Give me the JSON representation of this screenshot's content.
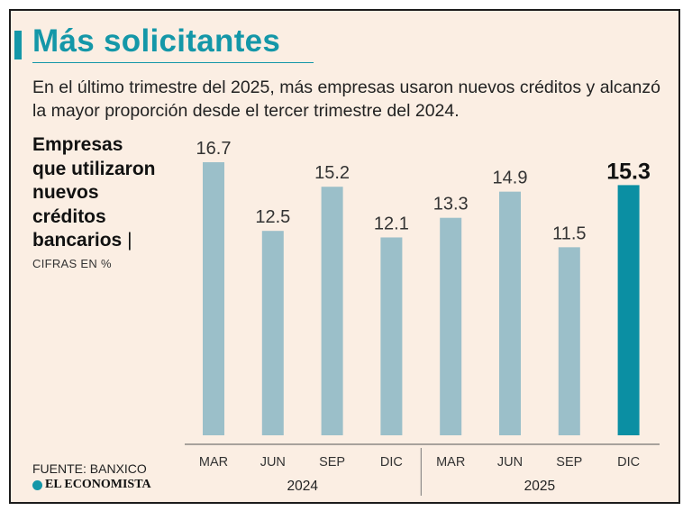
{
  "title": "Más solicitantes",
  "subtitle": "En el último trimestre del 2025, más empresas usaron nuevos créditos y alcanzó la mayor proporción desde el tercer trimestre del 2024.",
  "ylabel_lines": [
    "Empresas",
    "que utilizaron",
    "nuevos",
    "créditos",
    "bancarios"
  ],
  "ylabel_separator": "|",
  "units": "CIFRAS EN %",
  "source": "FUENTE: BANXICO",
  "brand": "EL ECONOMISTA",
  "colors": {
    "accent": "#1497a8",
    "bar": "#9bbfc9",
    "highlight": "#0b8fa3",
    "background": "#fbeee3"
  },
  "chart_data": {
    "type": "bar",
    "title": "Más solicitantes",
    "ylabel": "Empresas que utilizaron nuevos créditos bancarios | CIFRAS EN %",
    "categories": [
      "MAR",
      "JUN",
      "SEP",
      "DIC",
      "MAR",
      "JUN",
      "SEP",
      "DIC"
    ],
    "values": [
      16.7,
      12.5,
      15.2,
      12.1,
      13.3,
      14.9,
      11.5,
      15.3
    ],
    "value_labels": [
      "16.7",
      "12.5",
      "15.2",
      "12.1",
      "13.3",
      "14.9",
      "11.5",
      "15.3"
    ],
    "groups": [
      {
        "label": "2024",
        "start": 0,
        "end": 3
      },
      {
        "label": "2025",
        "start": 4,
        "end": 7
      }
    ],
    "highlight_index": 7,
    "ylim": [
      0,
      16.7
    ],
    "grid": false
  }
}
